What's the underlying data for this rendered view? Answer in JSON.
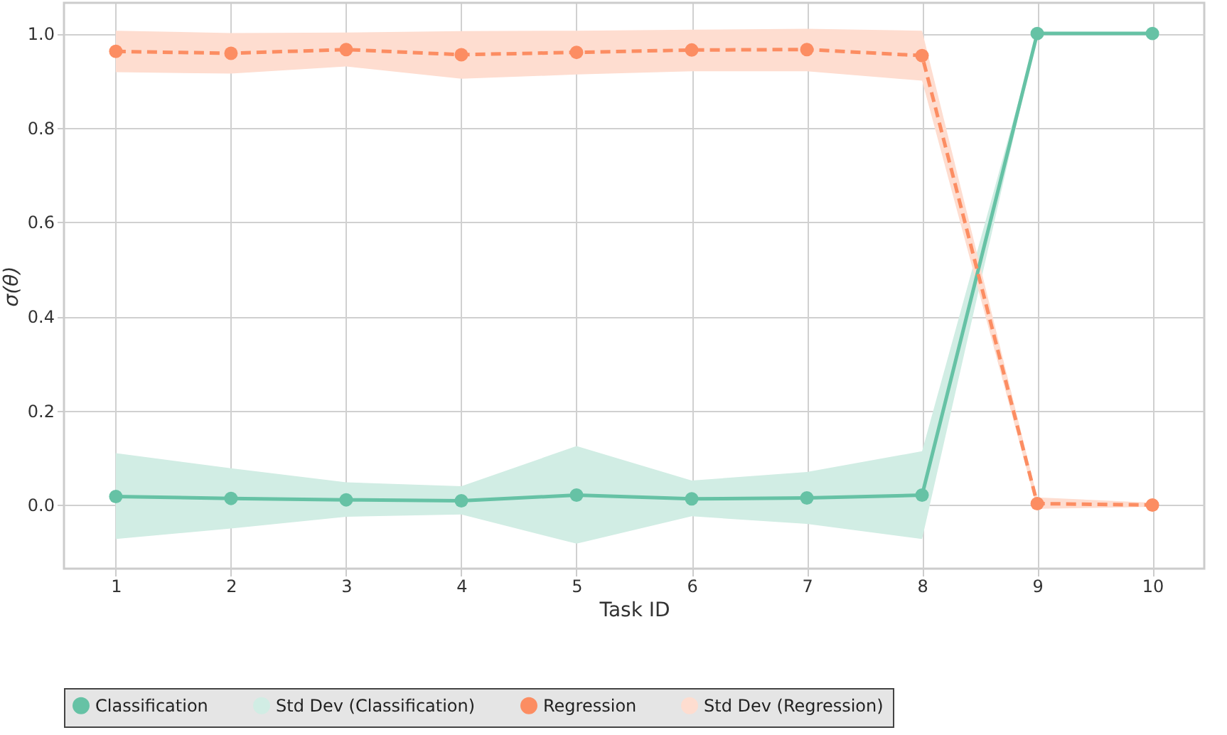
{
  "chart_data": {
    "type": "line",
    "xlabel": "Task ID",
    "ylabel": "σ(θ)",
    "x": [
      1,
      2,
      3,
      4,
      5,
      6,
      7,
      8,
      9,
      10
    ],
    "xlim": [
      0.55,
      10.45
    ],
    "xticks": [
      1,
      2,
      3,
      4,
      5,
      6,
      7,
      8,
      9,
      10
    ],
    "ylim": [
      -0.135,
      1.065
    ],
    "yticks": [
      {
        "value": 0,
        "label": "0.0"
      },
      {
        "value": 0.2,
        "label": "0.2"
      },
      {
        "value": 0.4,
        "label": "0.4"
      },
      {
        "value": 0.6,
        "label": "0.6"
      },
      {
        "value": 0.8,
        "label": "0.8"
      },
      {
        "value": 1,
        "label": "1.0"
      }
    ],
    "grid": true,
    "legend": "bottom",
    "marker": "circle",
    "annotations": [
      "Std Dev (Classification)",
      "Std Dev (Regression)"
    ],
    "series": [
      {
        "name": "Classification",
        "color": "#66c2a5",
        "line_style": "solid",
        "values": [
          0.018,
          0.014,
          0.011,
          0.009,
          0.021,
          0.013,
          0.015,
          0.021,
          1.0,
          1.0
        ],
        "lower": [
          -0.072,
          -0.05,
          -0.025,
          -0.02,
          -0.082,
          -0.024,
          -0.04,
          -0.072,
          1.0,
          1.0
        ],
        "upper": [
          0.11,
          0.078,
          0.048,
          0.04,
          0.125,
          0.052,
          0.07,
          0.114,
          1.0,
          1.0
        ]
      },
      {
        "name": "Regression",
        "color": "#fc8d62",
        "line_style": "dashed",
        "values": [
          0.962,
          0.958,
          0.966,
          0.955,
          0.96,
          0.965,
          0.966,
          0.953,
          0.003,
          0.0
        ],
        "lower": [
          0.918,
          0.915,
          0.93,
          0.904,
          0.913,
          0.92,
          0.92,
          0.9,
          -0.008,
          -0.004
        ],
        "upper": [
          1.006,
          1.001,
          1.002,
          1.005,
          1.006,
          1.008,
          1.01,
          1.006,
          0.016,
          0.005
        ]
      }
    ]
  }
}
